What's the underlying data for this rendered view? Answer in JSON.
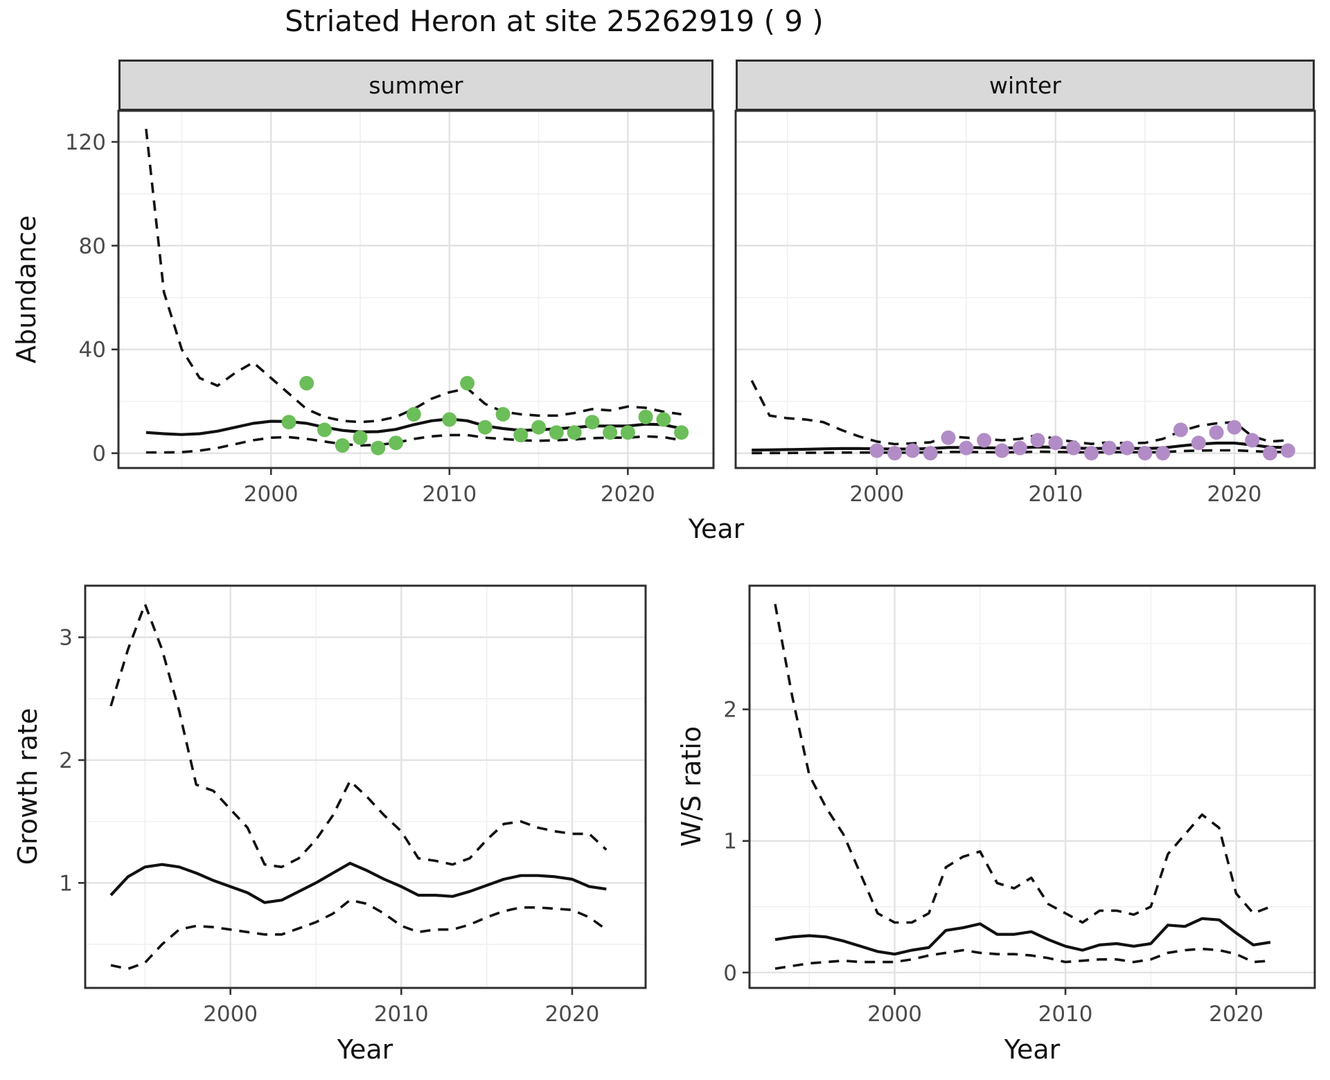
{
  "figure": {
    "title": "Striated Heron at site 25262919 ( 9 )",
    "xlabel": "Year"
  },
  "theme": {
    "point_green": "#6CBE5A",
    "point_purple": "#B28CC6",
    "line_color": "#111111",
    "panel_border": "#2F2F2F",
    "grid_major": "#E2E2E2",
    "grid_minor": "#F0F0F0",
    "strip_fill": "#D9D9D9",
    "tick_text": "#4A4A4A",
    "background": "#FFFFFF"
  },
  "chart_data": [
    {
      "id": "abundance_summer",
      "type": "line",
      "facet_label": "summer",
      "title": "",
      "xlabel": "Year",
      "ylabel": "Abundance",
      "grid": true,
      "legend": "none",
      "xlim": [
        1991.45,
        2024.8
      ],
      "ylim": [
        -5.7,
        132
      ],
      "x_ticks": [
        2000,
        2010,
        2020
      ],
      "x_minor": [
        1995,
        2005,
        2015
      ],
      "y_ticks": [
        0,
        40,
        80,
        120
      ],
      "y_minor": [
        20,
        60,
        100
      ],
      "x": [
        1993,
        1994,
        1995,
        1996,
        1997,
        1998,
        1999,
        2000,
        2001,
        2002,
        2003,
        2004,
        2005,
        2006,
        2007,
        2008,
        2009,
        2010,
        2011,
        2012,
        2013,
        2014,
        2015,
        2016,
        2017,
        2018,
        2019,
        2020,
        2021,
        2022,
        2023
      ],
      "series": [
        {
          "name": "fit",
          "style": "solid",
          "values": [
            8.0,
            7.5,
            7.2,
            7.5,
            8.5,
            10.0,
            11.5,
            12.3,
            12.2,
            11.5,
            10.0,
            8.8,
            8.2,
            8.3,
            9.2,
            11.0,
            12.5,
            13.2,
            12.5,
            10.5,
            9.5,
            8.8,
            9.0,
            9.4,
            9.9,
            10.5,
            10.5,
            10.5,
            11.2,
            11.0,
            9.5
          ]
        },
        {
          "name": "upper_ci",
          "style": "dashed",
          "values": [
            125,
            62,
            40,
            29,
            26,
            31,
            35,
            29,
            23,
            17,
            14,
            12.5,
            12,
            12.5,
            14,
            17,
            21,
            23.5,
            25,
            19,
            16,
            15,
            14.5,
            14.5,
            15.5,
            17,
            16.5,
            18,
            17.5,
            16,
            15
          ]
        },
        {
          "name": "lower_ci",
          "style": "dashed",
          "values": [
            0.3,
            0.3,
            0.4,
            1.0,
            2.0,
            3.5,
            5.0,
            6.0,
            6.2,
            5.5,
            4.5,
            3.5,
            3.0,
            3.2,
            4.0,
            5.5,
            6.5,
            7.0,
            7.0,
            6.0,
            5.5,
            5.0,
            4.8,
            5.0,
            5.3,
            5.8,
            6.0,
            6.0,
            6.5,
            6.2,
            5.0
          ]
        }
      ],
      "points": {
        "name": "observed_counts",
        "color": "#6CBE5A",
        "years": [
          2001,
          2002,
          2003,
          2004,
          2005,
          2006,
          2007,
          2008,
          2010,
          2011,
          2012,
          2013,
          2014,
          2015,
          2016,
          2017,
          2018,
          2019,
          2020,
          2021,
          2022,
          2023
        ],
        "values": [
          12,
          27,
          9,
          3,
          6,
          2,
          4,
          15,
          13,
          27,
          10,
          15,
          7,
          10,
          8,
          8,
          12,
          8,
          8,
          14,
          13,
          8
        ]
      }
    },
    {
      "id": "abundance_winter",
      "type": "line",
      "facet_label": "winter",
      "title": "",
      "xlabel": "Year",
      "ylabel": "Abundance",
      "grid": true,
      "legend": "none",
      "xlim": [
        1992.1,
        2024.5
      ],
      "ylim": [
        -5.7,
        132
      ],
      "x_ticks": [
        2000,
        2010,
        2020
      ],
      "x_minor": [
        1995,
        2005,
        2015
      ],
      "y_ticks": [
        0,
        40,
        80,
        120
      ],
      "y_minor": [
        20,
        60,
        100
      ],
      "x": [
        1993,
        1994,
        1995,
        1996,
        1997,
        1998,
        1999,
        2000,
        2001,
        2002,
        2003,
        2004,
        2005,
        2006,
        2007,
        2008,
        2009,
        2010,
        2011,
        2012,
        2013,
        2014,
        2015,
        2016,
        2017,
        2018,
        2019,
        2020,
        2021,
        2022,
        2023
      ],
      "series": [
        {
          "name": "fit",
          "style": "solid",
          "values": [
            1.2,
            1.3,
            1.4,
            1.5,
            1.7,
            1.8,
            1.8,
            1.7,
            1.6,
            1.6,
            1.8,
            2.2,
            2.2,
            2.1,
            2.0,
            2.1,
            2.4,
            2.3,
            2.0,
            1.8,
            1.9,
            1.9,
            1.8,
            2.0,
            2.8,
            3.5,
            3.9,
            3.9,
            3.2,
            2.3,
            2.2
          ]
        },
        {
          "name": "upper_ci",
          "style": "dashed",
          "values": [
            28,
            14.5,
            13.5,
            13,
            12,
            9,
            6.5,
            4.5,
            3.5,
            3.8,
            4.2,
            6.5,
            6.0,
            5.5,
            5.0,
            5.5,
            7.0,
            5.5,
            4.4,
            3.6,
            4.2,
            3.8,
            4.0,
            5.5,
            8.5,
            10.5,
            11.5,
            12,
            6.5,
            4.5,
            5.0
          ]
        },
        {
          "name": "lower_ci",
          "style": "dashed",
          "values": [
            0.05,
            0.1,
            0.1,
            0.15,
            0.2,
            0.25,
            0.25,
            0.25,
            0.2,
            0.25,
            0.3,
            0.5,
            0.5,
            0.4,
            0.35,
            0.4,
            0.6,
            0.5,
            0.4,
            0.3,
            0.4,
            0.4,
            0.35,
            0.4,
            0.8,
            1.0,
            1.1,
            1.1,
            0.8,
            0.5,
            0.5
          ]
        }
      ],
      "points": {
        "name": "observed_counts",
        "color": "#B28CC6",
        "years": [
          2000,
          2001,
          2002,
          2003,
          2004,
          2005,
          2006,
          2007,
          2008,
          2009,
          2010,
          2011,
          2012,
          2013,
          2014,
          2015,
          2016,
          2017,
          2018,
          2019,
          2020,
          2021,
          2022,
          2023
        ],
        "values": [
          1,
          0,
          1,
          0,
          6,
          2,
          5,
          1,
          2,
          5,
          4,
          2,
          0,
          2,
          2,
          0,
          0,
          9,
          4,
          8,
          10,
          5,
          0,
          1
        ]
      }
    },
    {
      "id": "growth_rate",
      "type": "line",
      "facet_label": "",
      "title": "",
      "xlabel": "Year",
      "ylabel": "Growth rate",
      "grid": true,
      "legend": "none",
      "xlim": [
        1991.5,
        2024.3
      ],
      "ylim": [
        0.145,
        3.42
      ],
      "x_ticks": [
        2000,
        2010,
        2020
      ],
      "x_minor": [
        1995,
        2005,
        2015
      ],
      "y_ticks": [
        1,
        2,
        3
      ],
      "y_minor": [
        0.5,
        1.5,
        2.5
      ],
      "x": [
        1993,
        1994,
        1995,
        1996,
        1997,
        1998,
        1999,
        2000,
        2001,
        2002,
        2003,
        2004,
        2005,
        2006,
        2007,
        2008,
        2009,
        2010,
        2011,
        2012,
        2013,
        2014,
        2015,
        2016,
        2017,
        2018,
        2019,
        2020,
        2021,
        2022
      ],
      "series": [
        {
          "name": "fit",
          "style": "solid",
          "values": [
            0.9,
            1.05,
            1.13,
            1.15,
            1.13,
            1.08,
            1.02,
            0.97,
            0.92,
            0.84,
            0.86,
            0.93,
            1.0,
            1.08,
            1.16,
            1.1,
            1.03,
            0.97,
            0.9,
            0.9,
            0.89,
            0.93,
            0.98,
            1.03,
            1.06,
            1.06,
            1.05,
            1.03,
            0.97,
            0.95
          ]
        },
        {
          "name": "upper_ci",
          "style": "dashed",
          "values": [
            2.44,
            2.9,
            3.27,
            2.9,
            2.4,
            1.8,
            1.75,
            1.6,
            1.45,
            1.15,
            1.13,
            1.2,
            1.35,
            1.55,
            1.83,
            1.7,
            1.55,
            1.42,
            1.2,
            1.18,
            1.15,
            1.2,
            1.35,
            1.48,
            1.5,
            1.45,
            1.42,
            1.4,
            1.4,
            1.27
          ]
        },
        {
          "name": "lower_ci",
          "style": "dashed",
          "values": [
            0.33,
            0.3,
            0.35,
            0.5,
            0.62,
            0.65,
            0.64,
            0.62,
            0.6,
            0.58,
            0.58,
            0.63,
            0.68,
            0.75,
            0.86,
            0.83,
            0.75,
            0.65,
            0.6,
            0.62,
            0.62,
            0.66,
            0.72,
            0.77,
            0.8,
            0.8,
            0.79,
            0.78,
            0.72,
            0.62
          ]
        }
      ],
      "points": null
    },
    {
      "id": "ws_ratio",
      "type": "line",
      "facet_label": "",
      "title": "",
      "xlabel": "Year",
      "ylabel": "W/S ratio",
      "grid": true,
      "legend": "none",
      "xlim": [
        1991.5,
        2024.6
      ],
      "ylim": [
        -0.117,
        2.94
      ],
      "x_ticks": [
        2000,
        2010,
        2020
      ],
      "x_minor": [
        1995,
        2005,
        2015
      ],
      "y_ticks": [
        0,
        1,
        2
      ],
      "y_minor": [
        0.5,
        1.5,
        2.5
      ],
      "x": [
        1993,
        1994,
        1995,
        1996,
        1997,
        1998,
        1999,
        2000,
        2001,
        2002,
        2003,
        2004,
        2005,
        2006,
        2007,
        2008,
        2009,
        2010,
        2011,
        2012,
        2013,
        2014,
        2015,
        2016,
        2017,
        2018,
        2019,
        2020,
        2021,
        2022
      ],
      "series": [
        {
          "name": "fit",
          "style": "solid",
          "values": [
            0.25,
            0.27,
            0.28,
            0.27,
            0.24,
            0.2,
            0.16,
            0.14,
            0.17,
            0.19,
            0.32,
            0.34,
            0.37,
            0.29,
            0.29,
            0.31,
            0.25,
            0.2,
            0.17,
            0.21,
            0.22,
            0.2,
            0.22,
            0.36,
            0.35,
            0.41,
            0.4,
            0.3,
            0.21,
            0.23
          ]
        },
        {
          "name": "upper_ci",
          "style": "dashed",
          "values": [
            2.8,
            2.1,
            1.5,
            1.25,
            1.05,
            0.75,
            0.45,
            0.38,
            0.38,
            0.45,
            0.8,
            0.88,
            0.92,
            0.68,
            0.64,
            0.72,
            0.52,
            0.45,
            0.38,
            0.47,
            0.47,
            0.44,
            0.5,
            0.9,
            1.05,
            1.2,
            1.1,
            0.6,
            0.45,
            0.5
          ]
        },
        {
          "name": "lower_ci",
          "style": "dashed",
          "values": [
            0.03,
            0.05,
            0.07,
            0.08,
            0.09,
            0.08,
            0.08,
            0.08,
            0.1,
            0.13,
            0.15,
            0.17,
            0.15,
            0.14,
            0.14,
            0.13,
            0.11,
            0.08,
            0.09,
            0.1,
            0.1,
            0.08,
            0.1,
            0.15,
            0.17,
            0.18,
            0.17,
            0.14,
            0.08,
            0.09
          ]
        }
      ],
      "points": null
    }
  ]
}
